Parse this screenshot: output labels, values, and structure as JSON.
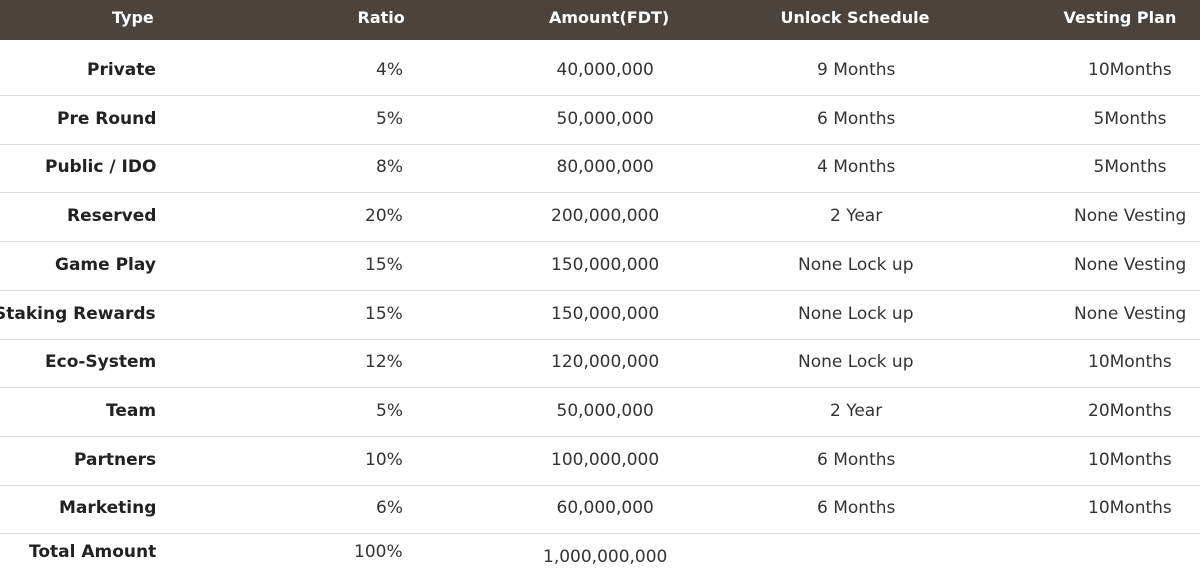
{
  "table": {
    "headers": [
      "Type",
      "Ratio",
      "Amount(FDT)",
      "Unlock Schedule",
      "Vesting Plan"
    ],
    "rows": [
      [
        "Private",
        "4%",
        "40,000,000",
        "9 Months",
        "10Months"
      ],
      [
        "Pre Round",
        "5%",
        "50,000,000",
        "6 Months",
        "5Months"
      ],
      [
        "Public / IDO",
        "8%",
        "80,000,000",
        "4 Months",
        "5Months"
      ],
      [
        "Reserved",
        "20%",
        "200,000,000",
        "2 Year",
        "None Vesting"
      ],
      [
        "Game Play",
        "15%",
        "150,000,000",
        "None Lock up",
        "None Vesting"
      ],
      [
        "Staking Rewards",
        "15%",
        "150,000,000",
        "None Lock up",
        "None Vesting"
      ],
      [
        "Eco-System",
        "12%",
        "120,000,000",
        "None Lock up",
        "10Months"
      ],
      [
        "Team",
        "5%",
        "50,000,000",
        "2 Year",
        "20Months"
      ],
      [
        "Partners",
        "10%",
        "100,000,000",
        "6 Months",
        "10Months"
      ],
      [
        "Marketing",
        "6%",
        "60,000,000",
        "6 Months",
        "10Months"
      ]
    ],
    "total": [
      "Total Amount",
      "100%",
      "1,000,000,000"
    ]
  }
}
